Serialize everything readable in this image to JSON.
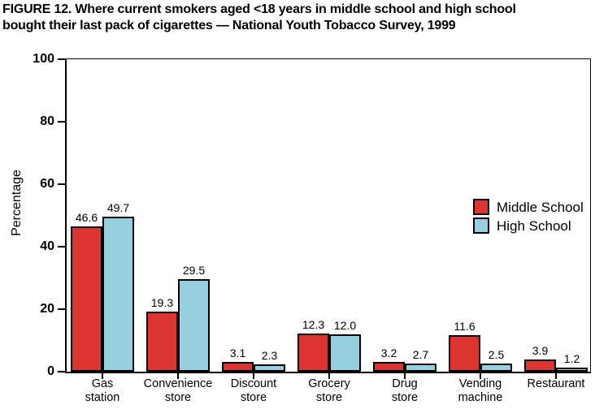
{
  "title": {
    "line1": "FIGURE 12. Where current smokers aged <18 years in middle school and high school",
    "line2": "bought their last pack of cigarettes — National Youth Tobacco Survey, 1999"
  },
  "chart_data": {
    "type": "bar",
    "title": "FIGURE 12. Where current smokers aged <18 years in middle school and high school bought their last pack of cigarettes — National Youth Tobacco Survey, 1999",
    "xlabel": "",
    "ylabel": "Percentage",
    "ylim": [
      0,
      100
    ],
    "yticks": [
      0,
      20,
      40,
      60,
      80,
      100
    ],
    "grid": false,
    "legend_position": "inside-right",
    "value_label_decimals": 1,
    "categories": [
      "Gas station",
      "Convenience store",
      "Discount store",
      "Grocery store",
      "Drug store",
      "Vending machine",
      "Restaurant"
    ],
    "series": [
      {
        "name": "Middle School",
        "color": "#dc3430",
        "values": [
          46.6,
          19.3,
          3.1,
          12.3,
          3.2,
          11.6,
          3.9
        ]
      },
      {
        "name": "High School",
        "color": "#96cfe0",
        "values": [
          49.7,
          29.5,
          2.3,
          12.0,
          2.7,
          2.5,
          1.2
        ]
      }
    ]
  },
  "colors": {
    "background": "#ffffff",
    "axis": "#000000",
    "text": "#000000",
    "bar_outline": "#000000"
  }
}
